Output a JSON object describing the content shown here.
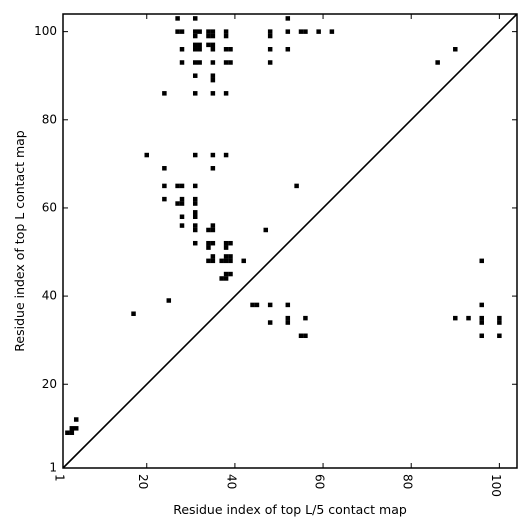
{
  "chart_data": {
    "type": "heatmap",
    "title": "",
    "xlabel": "Residue index of top L/5 contact map",
    "ylabel": "Residue index of top L contact map",
    "xlim": [
      1,
      104
    ],
    "ylim": [
      1,
      104
    ],
    "x_ticks": [
      "1",
      "20",
      "40",
      "60",
      "80",
      "100"
    ],
    "y_ticks": [
      "1",
      "20",
      "40",
      "60",
      "80",
      "100"
    ],
    "grid": false,
    "diagonal": true,
    "cell_color": "#000000",
    "upper_triangle_contacts": [
      [
        27,
        103
      ],
      [
        31,
        103
      ],
      [
        52,
        103
      ],
      [
        27,
        100
      ],
      [
        28,
        100
      ],
      [
        31,
        100
      ],
      [
        32,
        100
      ],
      [
        34,
        100
      ],
      [
        35,
        100
      ],
      [
        38,
        100
      ],
      [
        48,
        100
      ],
      [
        52,
        100
      ],
      [
        55,
        100
      ],
      [
        56,
        100
      ],
      [
        59,
        100
      ],
      [
        62,
        100
      ],
      [
        31,
        99
      ],
      [
        34,
        99
      ],
      [
        35,
        99
      ],
      [
        38,
        99
      ],
      [
        48,
        99
      ],
      [
        31,
        97
      ],
      [
        32,
        97
      ],
      [
        34,
        97
      ],
      [
        35,
        97
      ],
      [
        28,
        96
      ],
      [
        31,
        96
      ],
      [
        32,
        96
      ],
      [
        35,
        96
      ],
      [
        38,
        96
      ],
      [
        39,
        96
      ],
      [
        48,
        96
      ],
      [
        52,
        96
      ],
      [
        90,
        96
      ],
      [
        28,
        93
      ],
      [
        31,
        93
      ],
      [
        32,
        93
      ],
      [
        35,
        93
      ],
      [
        38,
        93
      ],
      [
        39,
        93
      ],
      [
        48,
        93
      ],
      [
        86,
        93
      ],
      [
        31,
        90
      ],
      [
        35,
        90
      ],
      [
        35,
        89
      ],
      [
        24,
        86
      ],
      [
        31,
        86
      ],
      [
        35,
        86
      ],
      [
        38,
        86
      ],
      [
        20,
        72
      ],
      [
        31,
        72
      ],
      [
        35,
        72
      ],
      [
        38,
        72
      ],
      [
        24,
        69
      ],
      [
        35,
        69
      ],
      [
        24,
        65
      ],
      [
        27,
        65
      ],
      [
        28,
        65
      ],
      [
        31,
        65
      ],
      [
        54,
        65
      ],
      [
        24,
        62
      ],
      [
        31,
        62
      ],
      [
        28,
        62
      ],
      [
        27,
        61
      ],
      [
        28,
        61
      ],
      [
        31,
        61
      ],
      [
        31,
        59
      ],
      [
        31,
        58
      ],
      [
        28,
        58
      ],
      [
        28,
        56
      ],
      [
        31,
        56
      ],
      [
        35,
        56
      ],
      [
        31,
        55
      ],
      [
        34,
        55
      ],
      [
        35,
        55
      ],
      [
        47,
        55
      ],
      [
        31,
        52
      ],
      [
        34,
        52
      ],
      [
        35,
        52
      ],
      [
        38,
        52
      ],
      [
        39,
        52
      ],
      [
        34,
        51
      ],
      [
        38,
        51
      ],
      [
        35,
        49
      ],
      [
        38,
        49
      ],
      [
        39,
        49
      ],
      [
        34,
        48
      ],
      [
        35,
        48
      ],
      [
        37,
        48
      ],
      [
        38,
        48
      ],
      [
        39,
        48
      ],
      [
        42,
        48
      ],
      [
        38,
        45
      ],
      [
        39,
        45
      ],
      [
        37,
        44
      ],
      [
        38,
        44
      ]
    ],
    "lower_triangle_contacts": [
      [
        96,
        48
      ],
      [
        25,
        39
      ],
      [
        44,
        38
      ],
      [
        45,
        38
      ],
      [
        48,
        38
      ],
      [
        52,
        38
      ],
      [
        96,
        38
      ],
      [
        17,
        36
      ],
      [
        52,
        35
      ],
      [
        56,
        35
      ],
      [
        90,
        35
      ],
      [
        93,
        35
      ],
      [
        96,
        35
      ],
      [
        100,
        35
      ],
      [
        48,
        34
      ],
      [
        52,
        34
      ],
      [
        96,
        34
      ],
      [
        100,
        34
      ],
      [
        55,
        31
      ],
      [
        56,
        31
      ],
      [
        96,
        31
      ],
      [
        100,
        31
      ],
      [
        4,
        12
      ],
      [
        3,
        10
      ],
      [
        4,
        10
      ],
      [
        2,
        9
      ],
      [
        3,
        9
      ]
    ]
  }
}
